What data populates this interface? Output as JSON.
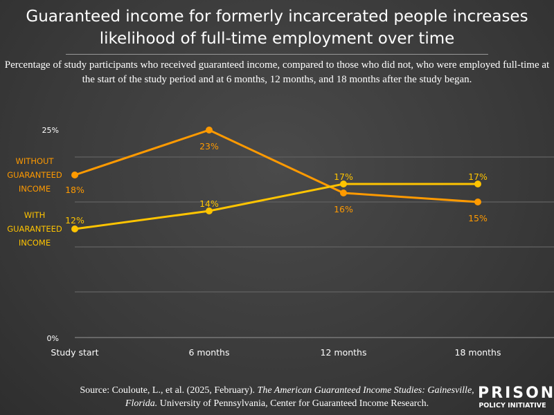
{
  "chart_data": {
    "type": "line",
    "title": "Guaranteed income for formerly incarcerated people increases likelihood of full-time employment over time",
    "subtitle": "Percentage of study participants who received guaranteed income, compared to those who did not, who were employed full-time at the start of the study period and at 6 months, 12 months, and 18 months after the study began.",
    "categories": [
      "Study start",
      "6 months",
      "12 months",
      "18 months"
    ],
    "ylim": [
      0,
      25
    ],
    "yticks": [
      "0%",
      "25%"
    ],
    "grid": true,
    "series": [
      {
        "name": "WITHOUT GUARANTEED INCOME",
        "values": [
          18,
          23,
          16,
          15
        ],
        "labels": [
          "18%",
          "23%",
          "16%",
          "15%"
        ],
        "color": "#ff9a00"
      },
      {
        "name": "WITH GUARANTEED INCOME",
        "values": [
          12,
          14,
          17,
          17
        ],
        "labels": [
          "12%",
          "14%",
          "17%",
          "17%"
        ],
        "color": "#ffc400"
      }
    ]
  },
  "source": {
    "prefix": "Source: Couloute, L., et al. (2025, February). ",
    "italic": "The American Guaranteed Income Studies: Gainesville, Florida.",
    "suffix": " University of Pennsylvania, Center for Guaranteed Income Research."
  },
  "logo": {
    "line1": "PRISON",
    "line2": "POLICY INITIATIVE"
  }
}
